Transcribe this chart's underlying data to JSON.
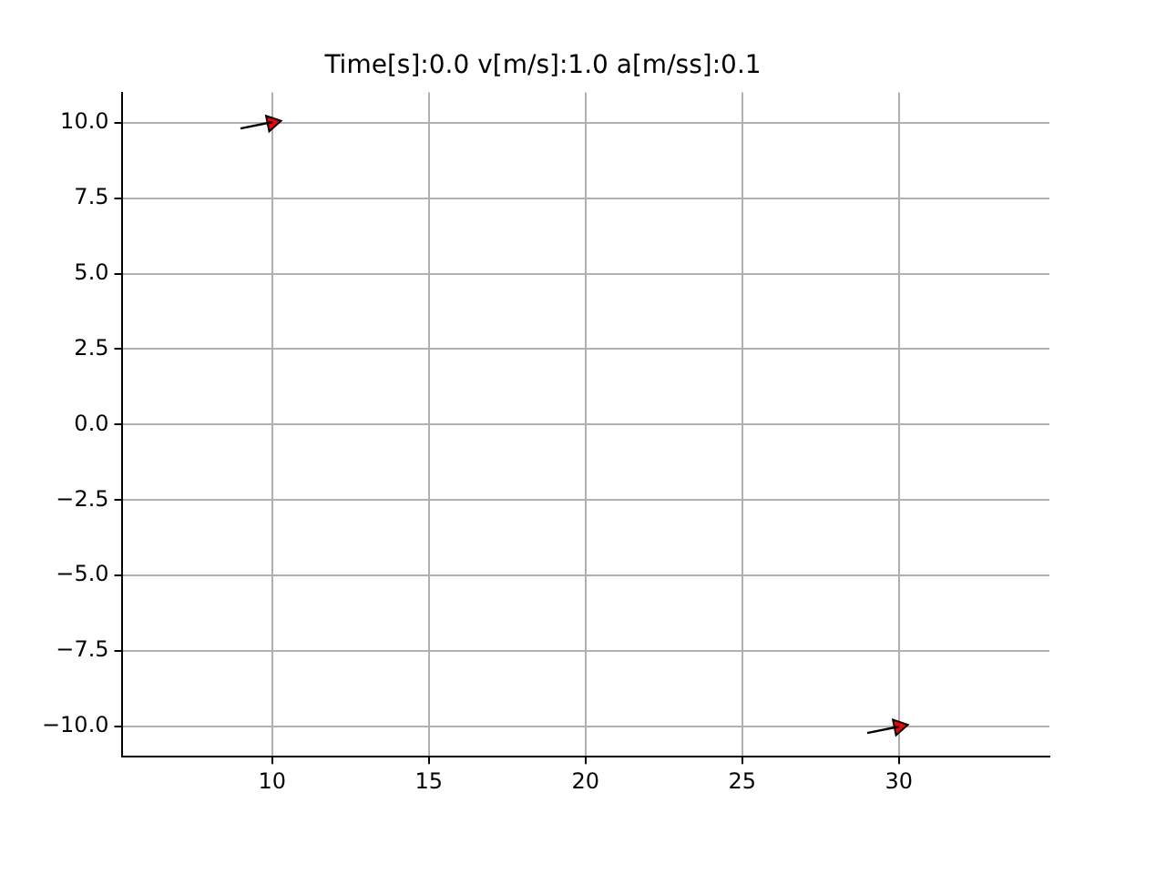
{
  "chart_data": {
    "type": "scatter",
    "title": "Time[s]:0.0 v[m/s]:1.0 a[m/ss]:0.1",
    "series": [
      {
        "color": "#ff0000",
        "x": [
          10,
          30
        ],
        "values": [
          10,
          -10
        ]
      }
    ],
    "xlim": [
      5.2,
      34.8
    ],
    "xticks": [
      10,
      15,
      20,
      25,
      30
    ],
    "ylim": [
      -11,
      11
    ],
    "yticks": [
      {
        "value": -10,
        "label": "−10.0"
      },
      {
        "value": -7.5,
        "label": "−7.5"
      },
      {
        "value": -5,
        "label": "−5.0"
      },
      {
        "value": -2.5,
        "label": "−2.5"
      },
      {
        "value": 0,
        "label": "0.0"
      },
      {
        "value": 2.5,
        "label": "2.5"
      },
      {
        "value": 5,
        "label": "5.0"
      },
      {
        "value": 7.5,
        "label": "7.5"
      },
      {
        "value": 10,
        "label": "10.0"
      }
    ],
    "grid": true,
    "legend": false,
    "marker": "triangle"
  }
}
